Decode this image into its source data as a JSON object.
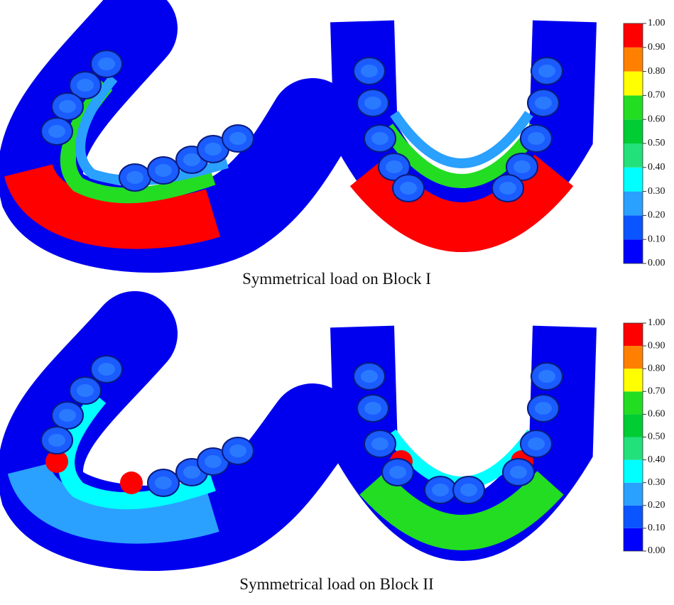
{
  "panels": [
    {
      "caption": "Symmetrical load on Block I",
      "colorbar": {
        "ticks": [
          {
            "value": 0,
            "label": "0.00"
          },
          {
            "value": 0.1,
            "label": "0.10"
          },
          {
            "value": 0.2,
            "label": "0.20"
          },
          {
            "value": 0.3,
            "label": "0.30"
          },
          {
            "value": 0.4,
            "label": "0.40"
          },
          {
            "value": 0.5,
            "label": "0.50"
          },
          {
            "value": 0.6,
            "label": "0.60"
          },
          {
            "value": 0.7,
            "label": "0.70"
          },
          {
            "value": 0.8,
            "label": "0.80"
          },
          {
            "value": 0.9,
            "label": "0.90"
          },
          {
            "value": 1,
            "label": "1.00"
          }
        ],
        "colors": [
          "#0000ff",
          "#0a55ff",
          "#2aa0ff",
          "#00ffff",
          "#22e07a",
          "#00cc33",
          "#22dd22",
          "#ffff00",
          "#ff8000",
          "#ff0000"
        ]
      }
    },
    {
      "caption": "Symmetrical load on Block II",
      "colorbar": {
        "ticks": [
          {
            "value": 0,
            "label": "0.00"
          },
          {
            "value": 0.1,
            "label": "0.10"
          },
          {
            "value": 0.2,
            "label": "0.20"
          },
          {
            "value": 0.3,
            "label": "0.30"
          },
          {
            "value": 0.4,
            "label": "0.40"
          },
          {
            "value": 0.5,
            "label": "0.50"
          },
          {
            "value": 0.6,
            "label": "0.60"
          },
          {
            "value": 0.7,
            "label": "0.70"
          },
          {
            "value": 0.8,
            "label": "0.80"
          },
          {
            "value": 0.9,
            "label": "0.90"
          },
          {
            "value": 1,
            "label": "1.00"
          }
        ],
        "colors": [
          "#0000ff",
          "#0a55ff",
          "#2aa0ff",
          "#00ffff",
          "#22e07a",
          "#00cc33",
          "#22dd22",
          "#ffff00",
          "#ff8000",
          "#ff0000"
        ]
      }
    }
  ]
}
